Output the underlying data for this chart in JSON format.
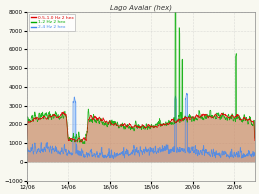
{
  "title": "Lago Avalar (hex)",
  "x_labels": [
    "12/06",
    "14/06",
    "16/06",
    "18/06",
    "20/06",
    "22/06"
  ],
  "x_ticks": [
    0,
    288,
    576,
    864,
    1152,
    1440
  ],
  "total_points": 1584,
  "ylim": [
    -1000,
    8000
  ],
  "yticks": [
    -1000,
    0,
    1000,
    2000,
    3000,
    4000,
    5000,
    6000,
    7000,
    8000
  ],
  "legend_labels": [
    "0.5-1.0 Hz 2 hex",
    "1-2 Hz 2 hex",
    "2-4 Hz 2 hex"
  ],
  "colors_fill": {
    "red": "#FF6666",
    "green": "#66CC66",
    "blue": "#88BBFF"
  },
  "colors_line": {
    "red": "#DD0000",
    "green": "#00AA00",
    "blue": "#4488EE"
  },
  "background": "#F8F8F0",
  "grid_color": "#BBBBBB",
  "seed": 42
}
